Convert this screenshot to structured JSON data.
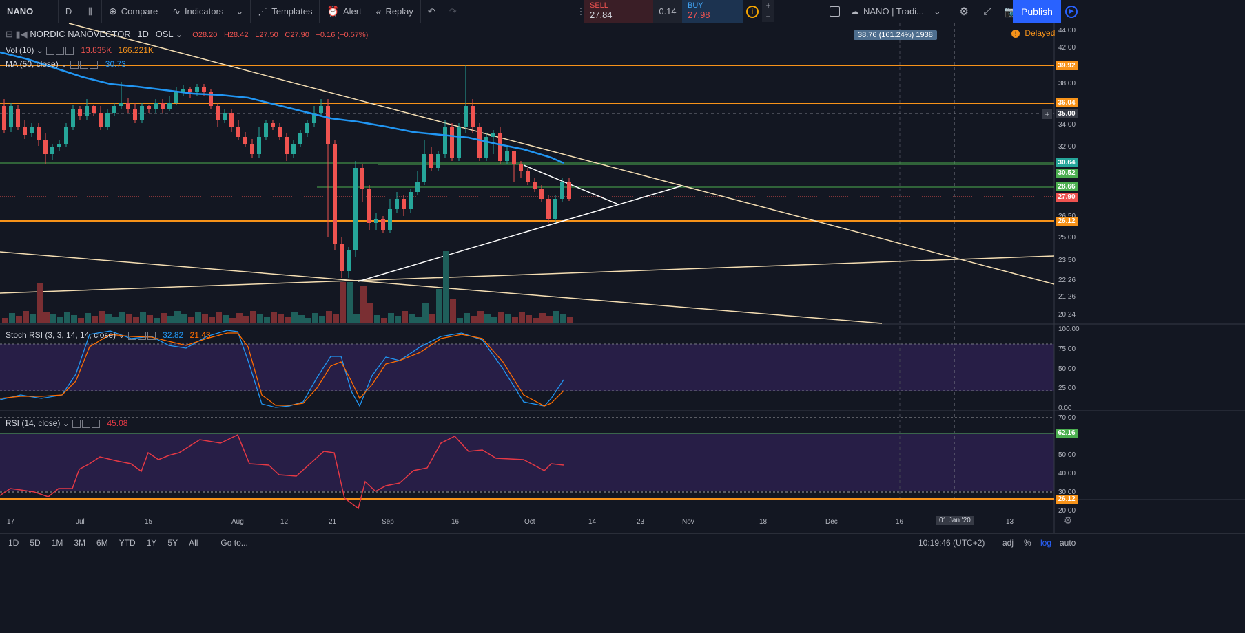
{
  "toolbar": {
    "symbol": "NANO",
    "interval": "D",
    "compare": "Compare",
    "indicators": "Indicators",
    "templates": "Templates",
    "alert": "Alert",
    "replay": "Replay",
    "sell_label": "SELL",
    "sell_price": "27.84",
    "spread": "0.14",
    "buy_label": "BUY",
    "buy_price": "27.98",
    "layout_name": "NANO | Tradi...",
    "publish": "Publish"
  },
  "legend": {
    "title": "NORDIC NANOVECTOR",
    "interval": "1D",
    "exchange": "OSL",
    "open": "O28.20",
    "high": "H28.42",
    "low": "L27.50",
    "close": "C27.90",
    "change": "−0.16 (−0.57%)",
    "vol_label": "Vol (10)",
    "vol_v1": "13.835K",
    "vol_v2": "166.221K",
    "ma_label": "MA (50, close)",
    "ma_value": "30.73",
    "delayed": "Delayed",
    "measure": "38.76 (161.24%) 1938"
  },
  "stoch": {
    "label": "Stoch RSI (3, 3, 14, 14, close)",
    "k": "32.82",
    "d": "21.43"
  },
  "rsi": {
    "label": "RSI (14, close)",
    "value": "45.08"
  },
  "price_axis": [
    "44.00",
    "42.00",
    "38.00",
    "34.00",
    "32.00",
    "26.50",
    "25.00",
    "23.50",
    "22.26",
    "21.26",
    "20.24"
  ],
  "price_tags": [
    {
      "text": "39.92",
      "color": "#f7931a"
    },
    {
      "text": "36.04",
      "color": "#f7931a"
    },
    {
      "text": "35.00",
      "color": "#363a45"
    },
    {
      "text": "30.64",
      "color": "#26a69a"
    },
    {
      "text": "30.52",
      "color": "#4caf50"
    },
    {
      "text": "28.66",
      "color": "#4caf50"
    },
    {
      "text": "27.90",
      "color": "#ef5350"
    },
    {
      "text": "26.12",
      "color": "#f7931a"
    }
  ],
  "stoch_axis": [
    "100.00",
    "75.00",
    "50.00",
    "25.00",
    "0.00"
  ],
  "rsi_axis": [
    "70.00",
    "62.16",
    "50.00",
    "40.00",
    "30.00",
    "26.12",
    "20.00"
  ],
  "dates": [
    "17",
    "Jul",
    "15",
    "Aug",
    "12",
    "21",
    "Sep",
    "16",
    "Oct",
    "14",
    "23",
    "Nov",
    "18",
    "Dec",
    "16",
    "01 Jan '20",
    "13"
  ],
  "bottom": {
    "ranges": [
      "1D",
      "5D",
      "1M",
      "3M",
      "6M",
      "YTD",
      "1Y",
      "5Y",
      "All"
    ],
    "goto": "Go to...",
    "time": "10:19:46 (UTC+2)",
    "adj": "adj",
    "pct": "%",
    "log": "log",
    "auto": "auto"
  },
  "colors": {
    "up": "#26a69a",
    "down": "#ef5350",
    "ma": "#2196f3",
    "orange": "#f7931a",
    "band": "#3a2566"
  }
}
